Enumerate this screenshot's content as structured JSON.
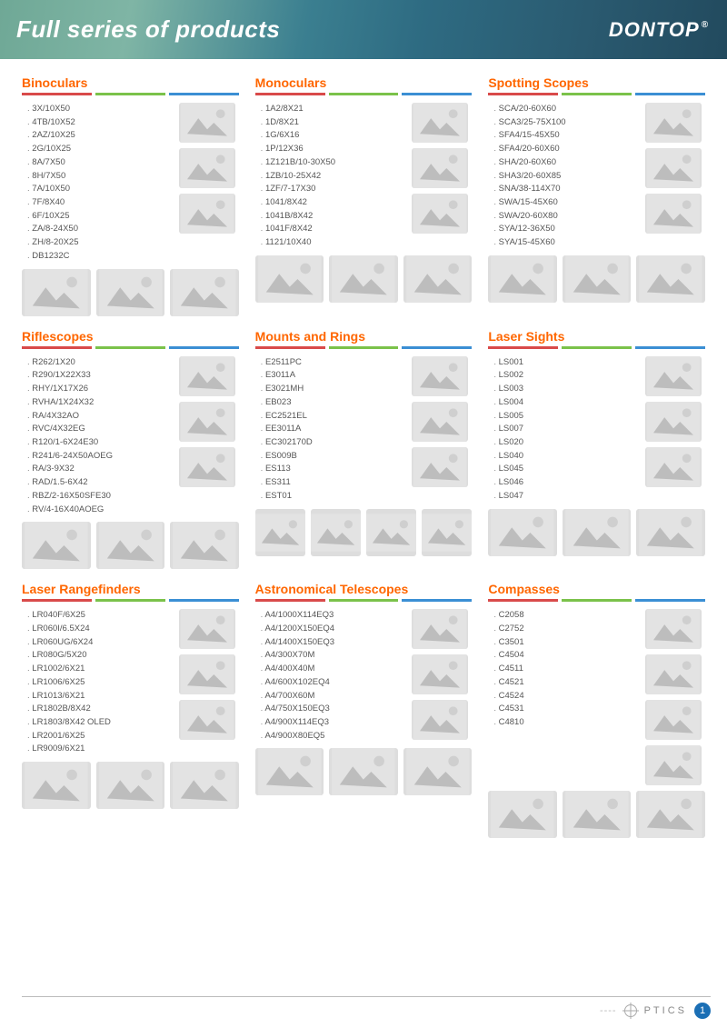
{
  "header": {
    "title": "Full series of products",
    "brand": "DONTOP",
    "brand_mark": "®"
  },
  "colors": {
    "accent_orange": "#ff6600",
    "underline_red": "#d94a4a",
    "underline_green": "#7bc24a",
    "underline_blue": "#3b8fd4",
    "header_grad_start": "#6fa896",
    "header_grad_end": "#224a5e",
    "page_badge": "#1b6fb5"
  },
  "footer": {
    "label": "PTICS",
    "page": "1"
  },
  "grid": [
    [
      {
        "title": "Binoculars",
        "skus": [
          "3X/10X50",
          "4TB/10X52",
          "2AZ/10X25",
          "2G/10X25",
          "8A/7X50",
          "8H/7X50",
          "7A/10X50",
          "7F/8X40",
          "6F/10X25",
          "ZA/8-24X50",
          "ZH/8-20X25",
          "DB1232C"
        ],
        "side_img_count": 3,
        "bottom_img_count": 3
      },
      {
        "title": "Monoculars",
        "skus": [
          "1A2/8X21",
          "1D/8X21",
          "1G/6X16",
          "1P/12X36",
          "1Z121B/10-30X50",
          "1ZB/10-25X42",
          "1ZF/7-17X30",
          "1041/8X42",
          "1041B/8X42",
          "1041F/8X42",
          "1121/10X40"
        ],
        "side_img_count": 3,
        "bottom_img_count": 3
      },
      {
        "title": "Spotting Scopes",
        "skus": [
          "SCA/20-60X60",
          "SCA3/25-75X100",
          "SFA4/15-45X50",
          "SFA4/20-60X60",
          "SHA/20-60X60",
          "SHA3/20-60X85",
          "SNA/38-114X70",
          "SWA/15-45X60",
          "SWA/20-60X80",
          "SYA/12-36X50",
          "SYA/15-45X60"
        ],
        "side_img_count": 3,
        "bottom_img_count": 3
      }
    ],
    [
      {
        "title": "Riflescopes",
        "skus": [
          "R262/1X20",
          "R290/1X22X33",
          "RHY/1X17X26",
          "RVHA/1X24X32",
          "RA/4X32AO",
          "RVC/4X32EG",
          "R120/1-6X24E30",
          "R241/6-24X50AOEG",
          "RA/3-9X32",
          "RAD/1.5-6X42",
          "RBZ/2-16X50SFE30",
          "RV/4-16X40AOEG"
        ],
        "side_img_count": 3,
        "bottom_img_count": 3
      },
      {
        "title": "Mounts and Rings",
        "skus": [
          "E2511PC",
          "E3011A",
          "E3021MH",
          "EB023",
          "EC2521EL",
          "EE3011A",
          "EC302170D",
          "ES009B",
          "ES113",
          "ES311",
          "EST01"
        ],
        "side_img_count": 3,
        "bottom_img_count": 4
      },
      {
        "title": "Laser Sights",
        "skus": [
          "LS001",
          "LS002",
          "LS003",
          "LS004",
          "LS005",
          "LS007",
          "LS020",
          "LS040",
          "LS045",
          "LS046",
          "LS047"
        ],
        "side_img_count": 3,
        "bottom_img_count": 3
      }
    ],
    [
      {
        "title": "Laser Rangefinders",
        "skus": [
          "LR040F/6X25",
          "LR060I/6.5X24",
          "LR060UG/6X24",
          "LR080G/5X20",
          "LR1002/6X21",
          "LR1006/6X25",
          "LR1013/6X21",
          "LR1802B/8X42",
          "LR1803/8X42 OLED",
          "LR2001/6X25",
          "LR9009/6X21"
        ],
        "side_img_count": 3,
        "bottom_img_count": 3
      },
      {
        "title": "Astronomical Telescopes",
        "skus": [
          "A4/1000X114EQ3",
          "A4/1200X150EQ4",
          "A4/1400X150EQ3",
          "A4/300X70M",
          "A4/400X40M",
          "A4/600X102EQ4",
          "A4/700X60M",
          "A4/750X150EQ3",
          "A4/900X114EQ3",
          "A4/900X80EQ5"
        ],
        "side_img_count": 3,
        "bottom_img_count": 3
      },
      {
        "title": "Compasses",
        "skus": [
          "C2058",
          "C2752",
          "C3501",
          "C4504",
          "C4511",
          "C4521",
          "C4524",
          "C4531",
          "C4810"
        ],
        "side_img_count": 4,
        "bottom_img_count": 3
      }
    ]
  ]
}
